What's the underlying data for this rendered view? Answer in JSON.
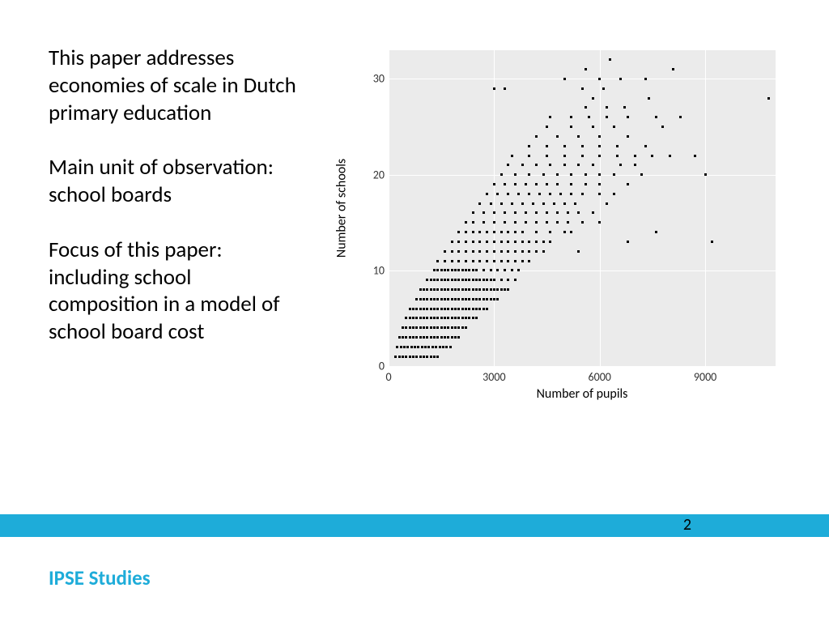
{
  "text": {
    "p1": "This paper addresses economies of scale in Dutch primary education",
    "p2": "Main unit of observation: school boards",
    "p3": "Focus of this paper: including school composition in a model of school board cost"
  },
  "footer": {
    "brand": "IPSE Studies",
    "page": "2"
  },
  "chart": {
    "type": "scatter",
    "xlabel": "Number of pupils",
    "ylabel": "Number of schools",
    "xlim": [
      0,
      11000
    ],
    "ylim": [
      0,
      33
    ],
    "xticks": [
      0,
      3000,
      6000,
      9000
    ],
    "yticks": [
      0,
      10,
      20,
      30
    ],
    "background_color": "#ebebeb",
    "grid_color": "#ffffff",
    "point_color": "#000000",
    "point_size": 3,
    "label_fontsize": 16,
    "tick_fontsize": 14,
    "data": [
      [
        200,
        1
      ],
      [
        300,
        1
      ],
      [
        400,
        1
      ],
      [
        500,
        1
      ],
      [
        600,
        1
      ],
      [
        700,
        1
      ],
      [
        800,
        1
      ],
      [
        900,
        1
      ],
      [
        1000,
        1
      ],
      [
        1100,
        1
      ],
      [
        1200,
        1
      ],
      [
        1300,
        1
      ],
      [
        1400,
        1
      ],
      [
        250,
        2
      ],
      [
        350,
        2
      ],
      [
        450,
        2
      ],
      [
        550,
        2
      ],
      [
        650,
        2
      ],
      [
        750,
        2
      ],
      [
        850,
        2
      ],
      [
        950,
        2
      ],
      [
        1050,
        2
      ],
      [
        1150,
        2
      ],
      [
        1250,
        2
      ],
      [
        1350,
        2
      ],
      [
        1450,
        2
      ],
      [
        1550,
        2
      ],
      [
        1650,
        2
      ],
      [
        1750,
        2
      ],
      [
        300,
        3
      ],
      [
        400,
        3
      ],
      [
        500,
        3
      ],
      [
        600,
        3
      ],
      [
        700,
        3
      ],
      [
        800,
        3
      ],
      [
        900,
        3
      ],
      [
        1000,
        3
      ],
      [
        1100,
        3
      ],
      [
        1200,
        3
      ],
      [
        1300,
        3
      ],
      [
        1400,
        3
      ],
      [
        1500,
        3
      ],
      [
        1600,
        3
      ],
      [
        1700,
        3
      ],
      [
        1800,
        3
      ],
      [
        1900,
        3
      ],
      [
        2000,
        3
      ],
      [
        400,
        4
      ],
      [
        500,
        4
      ],
      [
        600,
        4
      ],
      [
        700,
        4
      ],
      [
        800,
        4
      ],
      [
        900,
        4
      ],
      [
        1000,
        4
      ],
      [
        1100,
        4
      ],
      [
        1200,
        4
      ],
      [
        1300,
        4
      ],
      [
        1400,
        4
      ],
      [
        1500,
        4
      ],
      [
        1600,
        4
      ],
      [
        1700,
        4
      ],
      [
        1800,
        4
      ],
      [
        1900,
        4
      ],
      [
        2000,
        4
      ],
      [
        2100,
        4
      ],
      [
        2200,
        4
      ],
      [
        500,
        5
      ],
      [
        600,
        5
      ],
      [
        700,
        5
      ],
      [
        800,
        5
      ],
      [
        900,
        5
      ],
      [
        1000,
        5
      ],
      [
        1100,
        5
      ],
      [
        1200,
        5
      ],
      [
        1300,
        5
      ],
      [
        1400,
        5
      ],
      [
        1500,
        5
      ],
      [
        1600,
        5
      ],
      [
        1700,
        5
      ],
      [
        1800,
        5
      ],
      [
        1900,
        5
      ],
      [
        2000,
        5
      ],
      [
        2100,
        5
      ],
      [
        2200,
        5
      ],
      [
        2300,
        5
      ],
      [
        2400,
        5
      ],
      [
        2500,
        5
      ],
      [
        600,
        6
      ],
      [
        700,
        6
      ],
      [
        800,
        6
      ],
      [
        900,
        6
      ],
      [
        1000,
        6
      ],
      [
        1100,
        6
      ],
      [
        1200,
        6
      ],
      [
        1300,
        6
      ],
      [
        1400,
        6
      ],
      [
        1500,
        6
      ],
      [
        1600,
        6
      ],
      [
        1700,
        6
      ],
      [
        1800,
        6
      ],
      [
        1900,
        6
      ],
      [
        2000,
        6
      ],
      [
        2100,
        6
      ],
      [
        2200,
        6
      ],
      [
        2300,
        6
      ],
      [
        2400,
        6
      ],
      [
        2500,
        6
      ],
      [
        2600,
        6
      ],
      [
        2700,
        6
      ],
      [
        2800,
        6
      ],
      [
        800,
        7
      ],
      [
        900,
        7
      ],
      [
        1000,
        7
      ],
      [
        1100,
        7
      ],
      [
        1200,
        7
      ],
      [
        1300,
        7
      ],
      [
        1400,
        7
      ],
      [
        1500,
        7
      ],
      [
        1600,
        7
      ],
      [
        1700,
        7
      ],
      [
        1800,
        7
      ],
      [
        1900,
        7
      ],
      [
        2000,
        7
      ],
      [
        2100,
        7
      ],
      [
        2200,
        7
      ],
      [
        2300,
        7
      ],
      [
        2400,
        7
      ],
      [
        2500,
        7
      ],
      [
        2600,
        7
      ],
      [
        2700,
        7
      ],
      [
        2800,
        7
      ],
      [
        2900,
        7
      ],
      [
        3000,
        7
      ],
      [
        3100,
        7
      ],
      [
        900,
        8
      ],
      [
        1000,
        8
      ],
      [
        1100,
        8
      ],
      [
        1200,
        8
      ],
      [
        1300,
        8
      ],
      [
        1400,
        8
      ],
      [
        1500,
        8
      ],
      [
        1600,
        8
      ],
      [
        1700,
        8
      ],
      [
        1800,
        8
      ],
      [
        1900,
        8
      ],
      [
        2000,
        8
      ],
      [
        2100,
        8
      ],
      [
        2200,
        8
      ],
      [
        2300,
        8
      ],
      [
        2400,
        8
      ],
      [
        2500,
        8
      ],
      [
        2600,
        8
      ],
      [
        2700,
        8
      ],
      [
        2800,
        8
      ],
      [
        2900,
        8
      ],
      [
        3000,
        8
      ],
      [
        3100,
        8
      ],
      [
        3200,
        8
      ],
      [
        3300,
        8
      ],
      [
        3400,
        8
      ],
      [
        1100,
        9
      ],
      [
        1200,
        9
      ],
      [
        1300,
        9
      ],
      [
        1400,
        9
      ],
      [
        1500,
        9
      ],
      [
        1600,
        9
      ],
      [
        1700,
        9
      ],
      [
        1800,
        9
      ],
      [
        1900,
        9
      ],
      [
        2000,
        9
      ],
      [
        2100,
        9
      ],
      [
        2200,
        9
      ],
      [
        2300,
        9
      ],
      [
        2400,
        9
      ],
      [
        2500,
        9
      ],
      [
        2600,
        9
      ],
      [
        2700,
        9
      ],
      [
        2800,
        9
      ],
      [
        2900,
        9
      ],
      [
        3000,
        9
      ],
      [
        3200,
        9
      ],
      [
        3400,
        9
      ],
      [
        3600,
        9
      ],
      [
        1300,
        10
      ],
      [
        1400,
        10
      ],
      [
        1500,
        10
      ],
      [
        1600,
        10
      ],
      [
        1700,
        10
      ],
      [
        1800,
        10
      ],
      [
        1900,
        10
      ],
      [
        2000,
        10
      ],
      [
        2100,
        10
      ],
      [
        2200,
        10
      ],
      [
        2300,
        10
      ],
      [
        2400,
        10
      ],
      [
        2500,
        10
      ],
      [
        2700,
        10
      ],
      [
        2900,
        10
      ],
      [
        3100,
        10
      ],
      [
        3300,
        10
      ],
      [
        3500,
        10
      ],
      [
        3700,
        10
      ],
      [
        1400,
        11
      ],
      [
        1600,
        11
      ],
      [
        1800,
        11
      ],
      [
        2000,
        11
      ],
      [
        2200,
        11
      ],
      [
        2400,
        11
      ],
      [
        2600,
        11
      ],
      [
        2800,
        11
      ],
      [
        3000,
        11
      ],
      [
        3200,
        11
      ],
      [
        3400,
        11
      ],
      [
        3600,
        11
      ],
      [
        3800,
        11
      ],
      [
        4000,
        11
      ],
      [
        1600,
        12
      ],
      [
        1800,
        12
      ],
      [
        2000,
        12
      ],
      [
        2200,
        12
      ],
      [
        2400,
        12
      ],
      [
        2600,
        12
      ],
      [
        2800,
        12
      ],
      [
        3000,
        12
      ],
      [
        3200,
        12
      ],
      [
        3400,
        12
      ],
      [
        3600,
        12
      ],
      [
        3800,
        12
      ],
      [
        4000,
        12
      ],
      [
        4200,
        12
      ],
      [
        4400,
        12
      ],
      [
        5400,
        12
      ],
      [
        1800,
        13
      ],
      [
        2000,
        13
      ],
      [
        2200,
        13
      ],
      [
        2400,
        13
      ],
      [
        2600,
        13
      ],
      [
        2800,
        13
      ],
      [
        3000,
        13
      ],
      [
        3200,
        13
      ],
      [
        3400,
        13
      ],
      [
        3600,
        13
      ],
      [
        3800,
        13
      ],
      [
        4000,
        13
      ],
      [
        4200,
        13
      ],
      [
        4400,
        13
      ],
      [
        4600,
        13
      ],
      [
        6800,
        13
      ],
      [
        9200,
        13
      ],
      [
        2000,
        14
      ],
      [
        2200,
        14
      ],
      [
        2400,
        14
      ],
      [
        2600,
        14
      ],
      [
        2800,
        14
      ],
      [
        3000,
        14
      ],
      [
        3200,
        14
      ],
      [
        3400,
        14
      ],
      [
        3600,
        14
      ],
      [
        3800,
        14
      ],
      [
        4200,
        14
      ],
      [
        4600,
        14
      ],
      [
        5000,
        14
      ],
      [
        5200,
        14
      ],
      [
        7600,
        14
      ],
      [
        2200,
        15
      ],
      [
        2400,
        15
      ],
      [
        2700,
        15
      ],
      [
        3000,
        15
      ],
      [
        3300,
        15
      ],
      [
        3600,
        15
      ],
      [
        3900,
        15
      ],
      [
        4200,
        15
      ],
      [
        4500,
        15
      ],
      [
        4800,
        15
      ],
      [
        5100,
        15
      ],
      [
        5500,
        15
      ],
      [
        6000,
        15
      ],
      [
        2400,
        16
      ],
      [
        2700,
        16
      ],
      [
        3000,
        16
      ],
      [
        3300,
        16
      ],
      [
        3600,
        16
      ],
      [
        3900,
        16
      ],
      [
        4200,
        16
      ],
      [
        4500,
        16
      ],
      [
        4800,
        16
      ],
      [
        5100,
        16
      ],
      [
        5400,
        16
      ],
      [
        5800,
        16
      ],
      [
        2600,
        17
      ],
      [
        2900,
        17
      ],
      [
        3200,
        17
      ],
      [
        3500,
        17
      ],
      [
        3800,
        17
      ],
      [
        4100,
        17
      ],
      [
        4400,
        17
      ],
      [
        4700,
        17
      ],
      [
        5000,
        17
      ],
      [
        5300,
        17
      ],
      [
        6200,
        17
      ],
      [
        2800,
        18
      ],
      [
        3100,
        18
      ],
      [
        3400,
        18
      ],
      [
        3700,
        18
      ],
      [
        4000,
        18
      ],
      [
        4300,
        18
      ],
      [
        4600,
        18
      ],
      [
        4900,
        18
      ],
      [
        5200,
        18
      ],
      [
        5500,
        18
      ],
      [
        6000,
        18
      ],
      [
        6400,
        18
      ],
      [
        3000,
        19
      ],
      [
        3300,
        19
      ],
      [
        3600,
        19
      ],
      [
        3900,
        19
      ],
      [
        4200,
        19
      ],
      [
        4500,
        19
      ],
      [
        4800,
        19
      ],
      [
        5200,
        19
      ],
      [
        5600,
        19
      ],
      [
        6000,
        19
      ],
      [
        6800,
        19
      ],
      [
        3200,
        20
      ],
      [
        3600,
        20
      ],
      [
        4000,
        20
      ],
      [
        4400,
        20
      ],
      [
        4800,
        20
      ],
      [
        5200,
        20
      ],
      [
        5600,
        20
      ],
      [
        6000,
        20
      ],
      [
        6400,
        20
      ],
      [
        7200,
        20
      ],
      [
        9000,
        20
      ],
      [
        3400,
        21
      ],
      [
        3800,
        21
      ],
      [
        4200,
        21
      ],
      [
        4600,
        21
      ],
      [
        5000,
        21
      ],
      [
        5400,
        21
      ],
      [
        5800,
        21
      ],
      [
        6600,
        21
      ],
      [
        7000,
        21
      ],
      [
        3500,
        22
      ],
      [
        4000,
        22
      ],
      [
        4500,
        22
      ],
      [
        5000,
        22
      ],
      [
        5500,
        22
      ],
      [
        6000,
        22
      ],
      [
        6500,
        22
      ],
      [
        7000,
        22
      ],
      [
        7500,
        22
      ],
      [
        8000,
        22
      ],
      [
        8700,
        22
      ],
      [
        4000,
        23
      ],
      [
        4500,
        23
      ],
      [
        5000,
        23
      ],
      [
        5500,
        23
      ],
      [
        6000,
        23
      ],
      [
        6500,
        23
      ],
      [
        7300,
        23
      ],
      [
        4200,
        24
      ],
      [
        4800,
        24
      ],
      [
        5400,
        24
      ],
      [
        6000,
        24
      ],
      [
        6800,
        24
      ],
      [
        4500,
        25
      ],
      [
        5200,
        25
      ],
      [
        5800,
        25
      ],
      [
        6400,
        25
      ],
      [
        7800,
        25
      ],
      [
        4600,
        26
      ],
      [
        5200,
        26
      ],
      [
        5700,
        26
      ],
      [
        6200,
        26
      ],
      [
        6800,
        26
      ],
      [
        7600,
        26
      ],
      [
        8300,
        26
      ],
      [
        5600,
        27
      ],
      [
        6200,
        27
      ],
      [
        6700,
        27
      ],
      [
        10800,
        28
      ],
      [
        5800,
        28
      ],
      [
        7400,
        28
      ],
      [
        3000,
        29
      ],
      [
        3300,
        29
      ],
      [
        5500,
        29
      ],
      [
        6100,
        29
      ],
      [
        5000,
        30
      ],
      [
        6000,
        30
      ],
      [
        6600,
        30
      ],
      [
        7300,
        30
      ],
      [
        5600,
        31
      ],
      [
        8100,
        31
      ],
      [
        6300,
        32
      ]
    ]
  },
  "colors": {
    "blue_bar": "#1eacd9",
    "brand": "#1eacd9",
    "text": "#000000"
  }
}
